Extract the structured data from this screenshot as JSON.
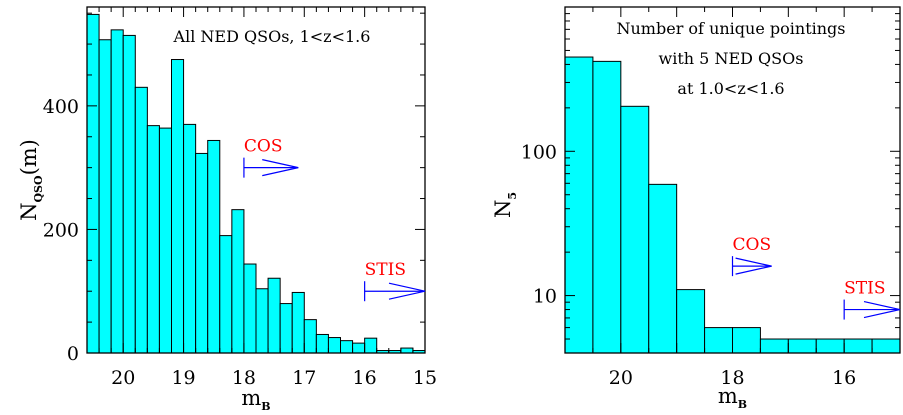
{
  "colors": {
    "bar_fill": "#00ffff",
    "bar_stroke": "#000000",
    "annotation_text": "#ff0000",
    "annotation_arrow": "#0000ff"
  },
  "chart_data": [
    {
      "type": "bar",
      "title_lines": [
        "All NED QSOs, 1<z<1.6"
      ],
      "xlabel": "m",
      "xlabel_sub": "B",
      "ylabel": "N",
      "ylabel_sub": "QSO",
      "ylabel_suffix": "(m)",
      "x_reversed": true,
      "xlim": [
        20.6,
        15.0
      ],
      "ylim": [
        0,
        560
      ],
      "x_ticks": [
        20,
        19,
        18,
        17,
        16,
        15
      ],
      "y_ticks": [
        0,
        200,
        400
      ],
      "bin_width": 0.2,
      "bins_left_edge": [
        20.6,
        20.4,
        20.2,
        20.0,
        19.8,
        19.6,
        19.4,
        19.2,
        19.0,
        18.8,
        18.6,
        18.4,
        18.2,
        18.0,
        17.8,
        17.6,
        17.4,
        17.2,
        17.0,
        16.8,
        16.6,
        16.4,
        16.2,
        16.0,
        15.8,
        15.6,
        15.4,
        15.2
      ],
      "values": [
        548,
        507,
        523,
        514,
        430,
        368,
        364,
        475,
        370,
        323,
        344,
        190,
        232,
        144,
        104,
        121,
        80,
        98,
        54,
        30,
        25,
        20,
        16,
        24,
        4,
        4,
        8,
        4
      ],
      "annotations": [
        {
          "label": "COS",
          "arrow_from": 18.0,
          "arrow_to": 17.1,
          "y": 300
        },
        {
          "label": "STIS",
          "arrow_from": 16.0,
          "arrow_to": 15.0,
          "y": 100
        }
      ]
    },
    {
      "type": "bar",
      "title_lines": [
        "Number of unique pointings",
        "with 5 NED QSOs",
        "at 1.0<z<1.6"
      ],
      "xlabel": "m",
      "xlabel_sub": "B",
      "ylabel": "N",
      "ylabel_sub": "5",
      "x_reversed": true,
      "log_y": true,
      "xlim": [
        21.0,
        15.0
      ],
      "ylim": [
        4,
        1000
      ],
      "x_ticks": [
        20,
        18,
        16
      ],
      "y_ticks": [
        10,
        100
      ],
      "bin_width": 0.5,
      "bins_left_edge": [
        21.0,
        20.5,
        20.0,
        19.5,
        19.0,
        18.5,
        18.0,
        17.5,
        17.0,
        16.5,
        16.0,
        15.5
      ],
      "values": [
        450,
        420,
        205,
        59,
        11,
        6,
        6,
        5,
        5,
        5,
        5,
        5
      ],
      "annotations": [
        {
          "label": "COS",
          "arrow_from": 18.0,
          "arrow_to": 17.3,
          "y": 16
        },
        {
          "label": "STIS",
          "arrow_from": 16.0,
          "arrow_to": 15.0,
          "y": 8
        }
      ]
    }
  ]
}
